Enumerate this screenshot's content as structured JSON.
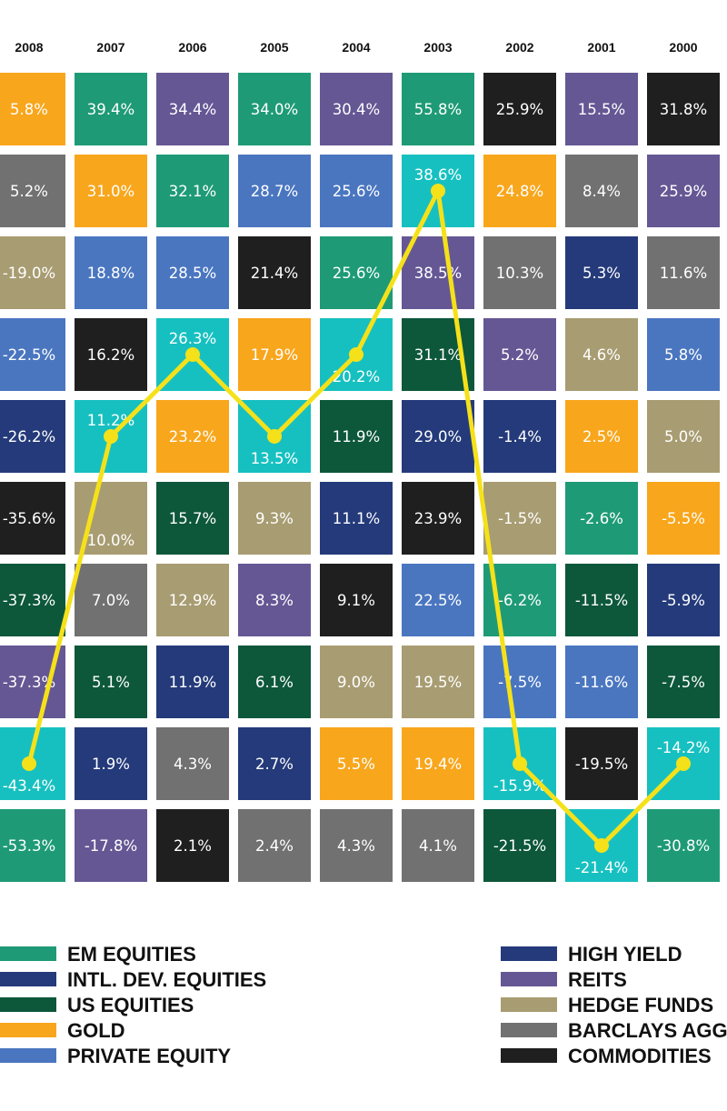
{
  "chart_data": {
    "type": "table",
    "years": [
      "2008",
      "2007",
      "2006",
      "2005",
      "2004",
      "2003",
      "2002",
      "2001",
      "2000"
    ],
    "asset_classes": [
      {
        "key": "em",
        "label": "EM EQUITIES",
        "color": "#1e9b76"
      },
      {
        "key": "intl",
        "label": "INTL. DEV. EQUITIES",
        "color": "#243a7a"
      },
      {
        "key": "us",
        "label": "US EQUITIES",
        "color": "#0d573b"
      },
      {
        "key": "gold",
        "label": "GOLD",
        "color": "#f8a61c"
      },
      {
        "key": "pe",
        "label": "PRIVATE EQUITY",
        "color": "#4a76c0"
      },
      {
        "key": "hy",
        "label": "HIGH YIELD",
        "color": "#243a7a"
      },
      {
        "key": "reits",
        "label": "REITS",
        "color": "#655794"
      },
      {
        "key": "hf",
        "label": "HEDGE FUNDS",
        "color": "#a89c72"
      },
      {
        "key": "agg",
        "label": "BARCLAYS AGG",
        "color": "#717171"
      },
      {
        "key": "comm",
        "label": "COMMODITIES",
        "color": "#1f1f1f"
      }
    ],
    "highlight_color": "#17c0c0",
    "line_color": "#f5e11a",
    "columns": [
      [
        {
          "v": "5.8%",
          "c": "gold"
        },
        {
          "v": "5.2%",
          "c": "agg"
        },
        {
          "v": "-19.0%",
          "c": "hf"
        },
        {
          "v": "-22.5%",
          "c": "pe"
        },
        {
          "v": "-26.2%",
          "c": "intl"
        },
        {
          "v": "-35.6%",
          "c": "comm"
        },
        {
          "v": "-37.3%",
          "c": "us"
        },
        {
          "v": "-37.3%",
          "c": "reits"
        },
        {
          "v": "-43.4%",
          "c": "hl"
        },
        {
          "v": "-53.3%",
          "c": "em"
        }
      ],
      [
        {
          "v": "39.4%",
          "c": "em"
        },
        {
          "v": "31.0%",
          "c": "gold"
        },
        {
          "v": "18.8%",
          "c": "pe"
        },
        {
          "v": "16.2%",
          "c": "comm"
        },
        {
          "v": "11.2%",
          "c": "hl"
        },
        {
          "v": "10.0%",
          "c": "hf"
        },
        {
          "v": "7.0%",
          "c": "agg"
        },
        {
          "v": "5.1%",
          "c": "us"
        },
        {
          "v": "1.9%",
          "c": "intl"
        },
        {
          "v": "-17.8%",
          "c": "reits"
        }
      ],
      [
        {
          "v": "34.4%",
          "c": "reits"
        },
        {
          "v": "32.1%",
          "c": "em"
        },
        {
          "v": "28.5%",
          "c": "pe"
        },
        {
          "v": "26.3%",
          "c": "hl"
        },
        {
          "v": "23.2%",
          "c": "gold"
        },
        {
          "v": "15.7%",
          "c": "us"
        },
        {
          "v": "12.9%",
          "c": "hf"
        },
        {
          "v": "11.9%",
          "c": "intl"
        },
        {
          "v": "4.3%",
          "c": "agg"
        },
        {
          "v": "2.1%",
          "c": "comm"
        }
      ],
      [
        {
          "v": "34.0%",
          "c": "em"
        },
        {
          "v": "28.7%",
          "c": "pe"
        },
        {
          "v": "21.4%",
          "c": "comm"
        },
        {
          "v": "17.9%",
          "c": "gold"
        },
        {
          "v": "13.5%",
          "c": "hl"
        },
        {
          "v": "9.3%",
          "c": "hf"
        },
        {
          "v": "8.3%",
          "c": "reits"
        },
        {
          "v": "6.1%",
          "c": "us"
        },
        {
          "v": "2.7%",
          "c": "intl"
        },
        {
          "v": "2.4%",
          "c": "agg"
        }
      ],
      [
        {
          "v": "30.4%",
          "c": "reits"
        },
        {
          "v": "25.6%",
          "c": "pe"
        },
        {
          "v": "25.6%",
          "c": "em"
        },
        {
          "v": "20.2%",
          "c": "hl"
        },
        {
          "v": "11.9%",
          "c": "us"
        },
        {
          "v": "11.1%",
          "c": "intl"
        },
        {
          "v": "9.1%",
          "c": "comm"
        },
        {
          "v": "9.0%",
          "c": "hf"
        },
        {
          "v": "5.5%",
          "c": "gold"
        },
        {
          "v": "4.3%",
          "c": "agg"
        }
      ],
      [
        {
          "v": "55.8%",
          "c": "em"
        },
        {
          "v": "38.6%",
          "c": "hl"
        },
        {
          "v": "38.5%",
          "c": "reits"
        },
        {
          "v": "31.1%",
          "c": "us"
        },
        {
          "v": "29.0%",
          "c": "intl"
        },
        {
          "v": "23.9%",
          "c": "comm"
        },
        {
          "v": "22.5%",
          "c": "pe"
        },
        {
          "v": "19.5%",
          "c": "hf"
        },
        {
          "v": "19.4%",
          "c": "gold"
        },
        {
          "v": "4.1%",
          "c": "agg"
        }
      ],
      [
        {
          "v": "25.9%",
          "c": "comm"
        },
        {
          "v": "24.8%",
          "c": "gold"
        },
        {
          "v": "10.3%",
          "c": "agg"
        },
        {
          "v": "5.2%",
          "c": "reits"
        },
        {
          "v": "-1.4%",
          "c": "intl"
        },
        {
          "v": "-1.5%",
          "c": "hf"
        },
        {
          "v": "-6.2%",
          "c": "em"
        },
        {
          "v": "-7.5%",
          "c": "pe"
        },
        {
          "v": "-15.9%",
          "c": "hl"
        },
        {
          "v": "-21.5%",
          "c": "us"
        }
      ],
      [
        {
          "v": "15.5%",
          "c": "reits"
        },
        {
          "v": "8.4%",
          "c": "agg"
        },
        {
          "v": "5.3%",
          "c": "intl"
        },
        {
          "v": "4.6%",
          "c": "hf"
        },
        {
          "v": "2.5%",
          "c": "gold"
        },
        {
          "v": "-2.6%",
          "c": "em"
        },
        {
          "v": "-11.5%",
          "c": "us"
        },
        {
          "v": "-11.6%",
          "c": "pe"
        },
        {
          "v": "-19.5%",
          "c": "comm"
        },
        {
          "v": "-21.4%",
          "c": "hl"
        }
      ],
      [
        {
          "v": "31.8%",
          "c": "comm"
        },
        {
          "v": "25.9%",
          "c": "reits"
        },
        {
          "v": "11.6%",
          "c": "agg"
        },
        {
          "v": "5.8%",
          "c": "pe"
        },
        {
          "v": "5.0%",
          "c": "hf"
        },
        {
          "v": "-5.5%",
          "c": "gold"
        },
        {
          "v": "-5.9%",
          "c": "intl"
        },
        {
          "v": "-7.5%",
          "c": "us"
        },
        {
          "v": "-14.2%",
          "c": "hl"
        },
        {
          "v": "-30.8%",
          "c": "em"
        }
      ]
    ],
    "highlight_series": {
      "ranks": [
        9,
        5,
        4,
        5,
        4,
        2,
        9,
        10,
        9
      ],
      "values": [
        "-43.4%",
        "11.2%",
        "26.3%",
        "13.5%",
        "20.2%",
        "38.6%",
        "-15.9%",
        "-21.4%",
        "-14.2%"
      ]
    }
  }
}
